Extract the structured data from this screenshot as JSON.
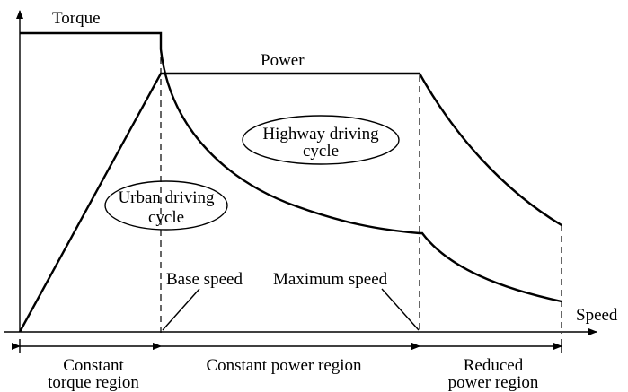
{
  "labels": {
    "torque": "Torque",
    "power": "Power",
    "speed": "Speed",
    "highway_line1": "Highway driving",
    "highway_line2": "cycle",
    "urban_line1": "Urban driving",
    "urban_line2": "cycle",
    "base_speed": "Base speed",
    "max_speed": "Maximum speed",
    "region1_line1": "Constant",
    "region1_line2": "torque region",
    "region2": "Constant power region",
    "region3_line1": "Reduced",
    "region3_line2": "power region"
  }
}
